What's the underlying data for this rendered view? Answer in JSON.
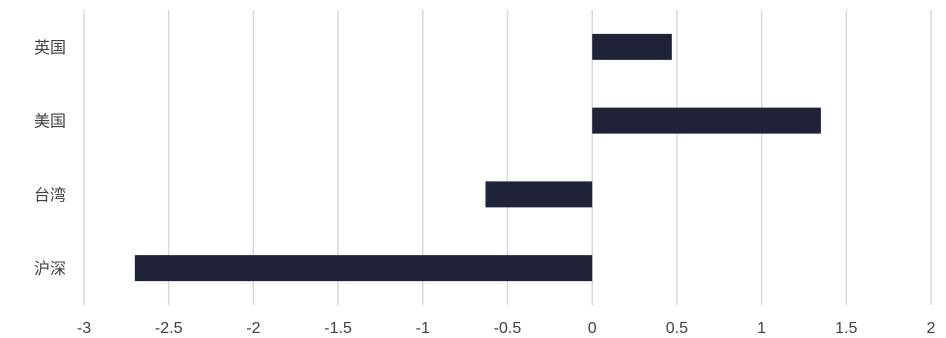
{
  "chart_data": {
    "type": "bar",
    "orientation": "horizontal",
    "categories": [
      "英国",
      "美国",
      "台湾",
      "沪深"
    ],
    "values": [
      0.47,
      1.35,
      -0.63,
      -2.7
    ],
    "xlim": [
      -3,
      2
    ],
    "xticks": [
      -3,
      -2.5,
      -2,
      -1.5,
      -1,
      -0.5,
      0,
      0.5,
      1,
      1.5,
      2
    ],
    "xtick_labels": [
      "-3",
      "-2.5",
      "-2",
      "-1.5",
      "-1",
      "-0.5",
      "0",
      "0.5",
      "1",
      "1.5",
      "2"
    ],
    "grid": "vertical",
    "bar_color": "#1f2339",
    "grid_color": "#d9d9d9",
    "title": "",
    "xlabel": "",
    "ylabel": ""
  }
}
